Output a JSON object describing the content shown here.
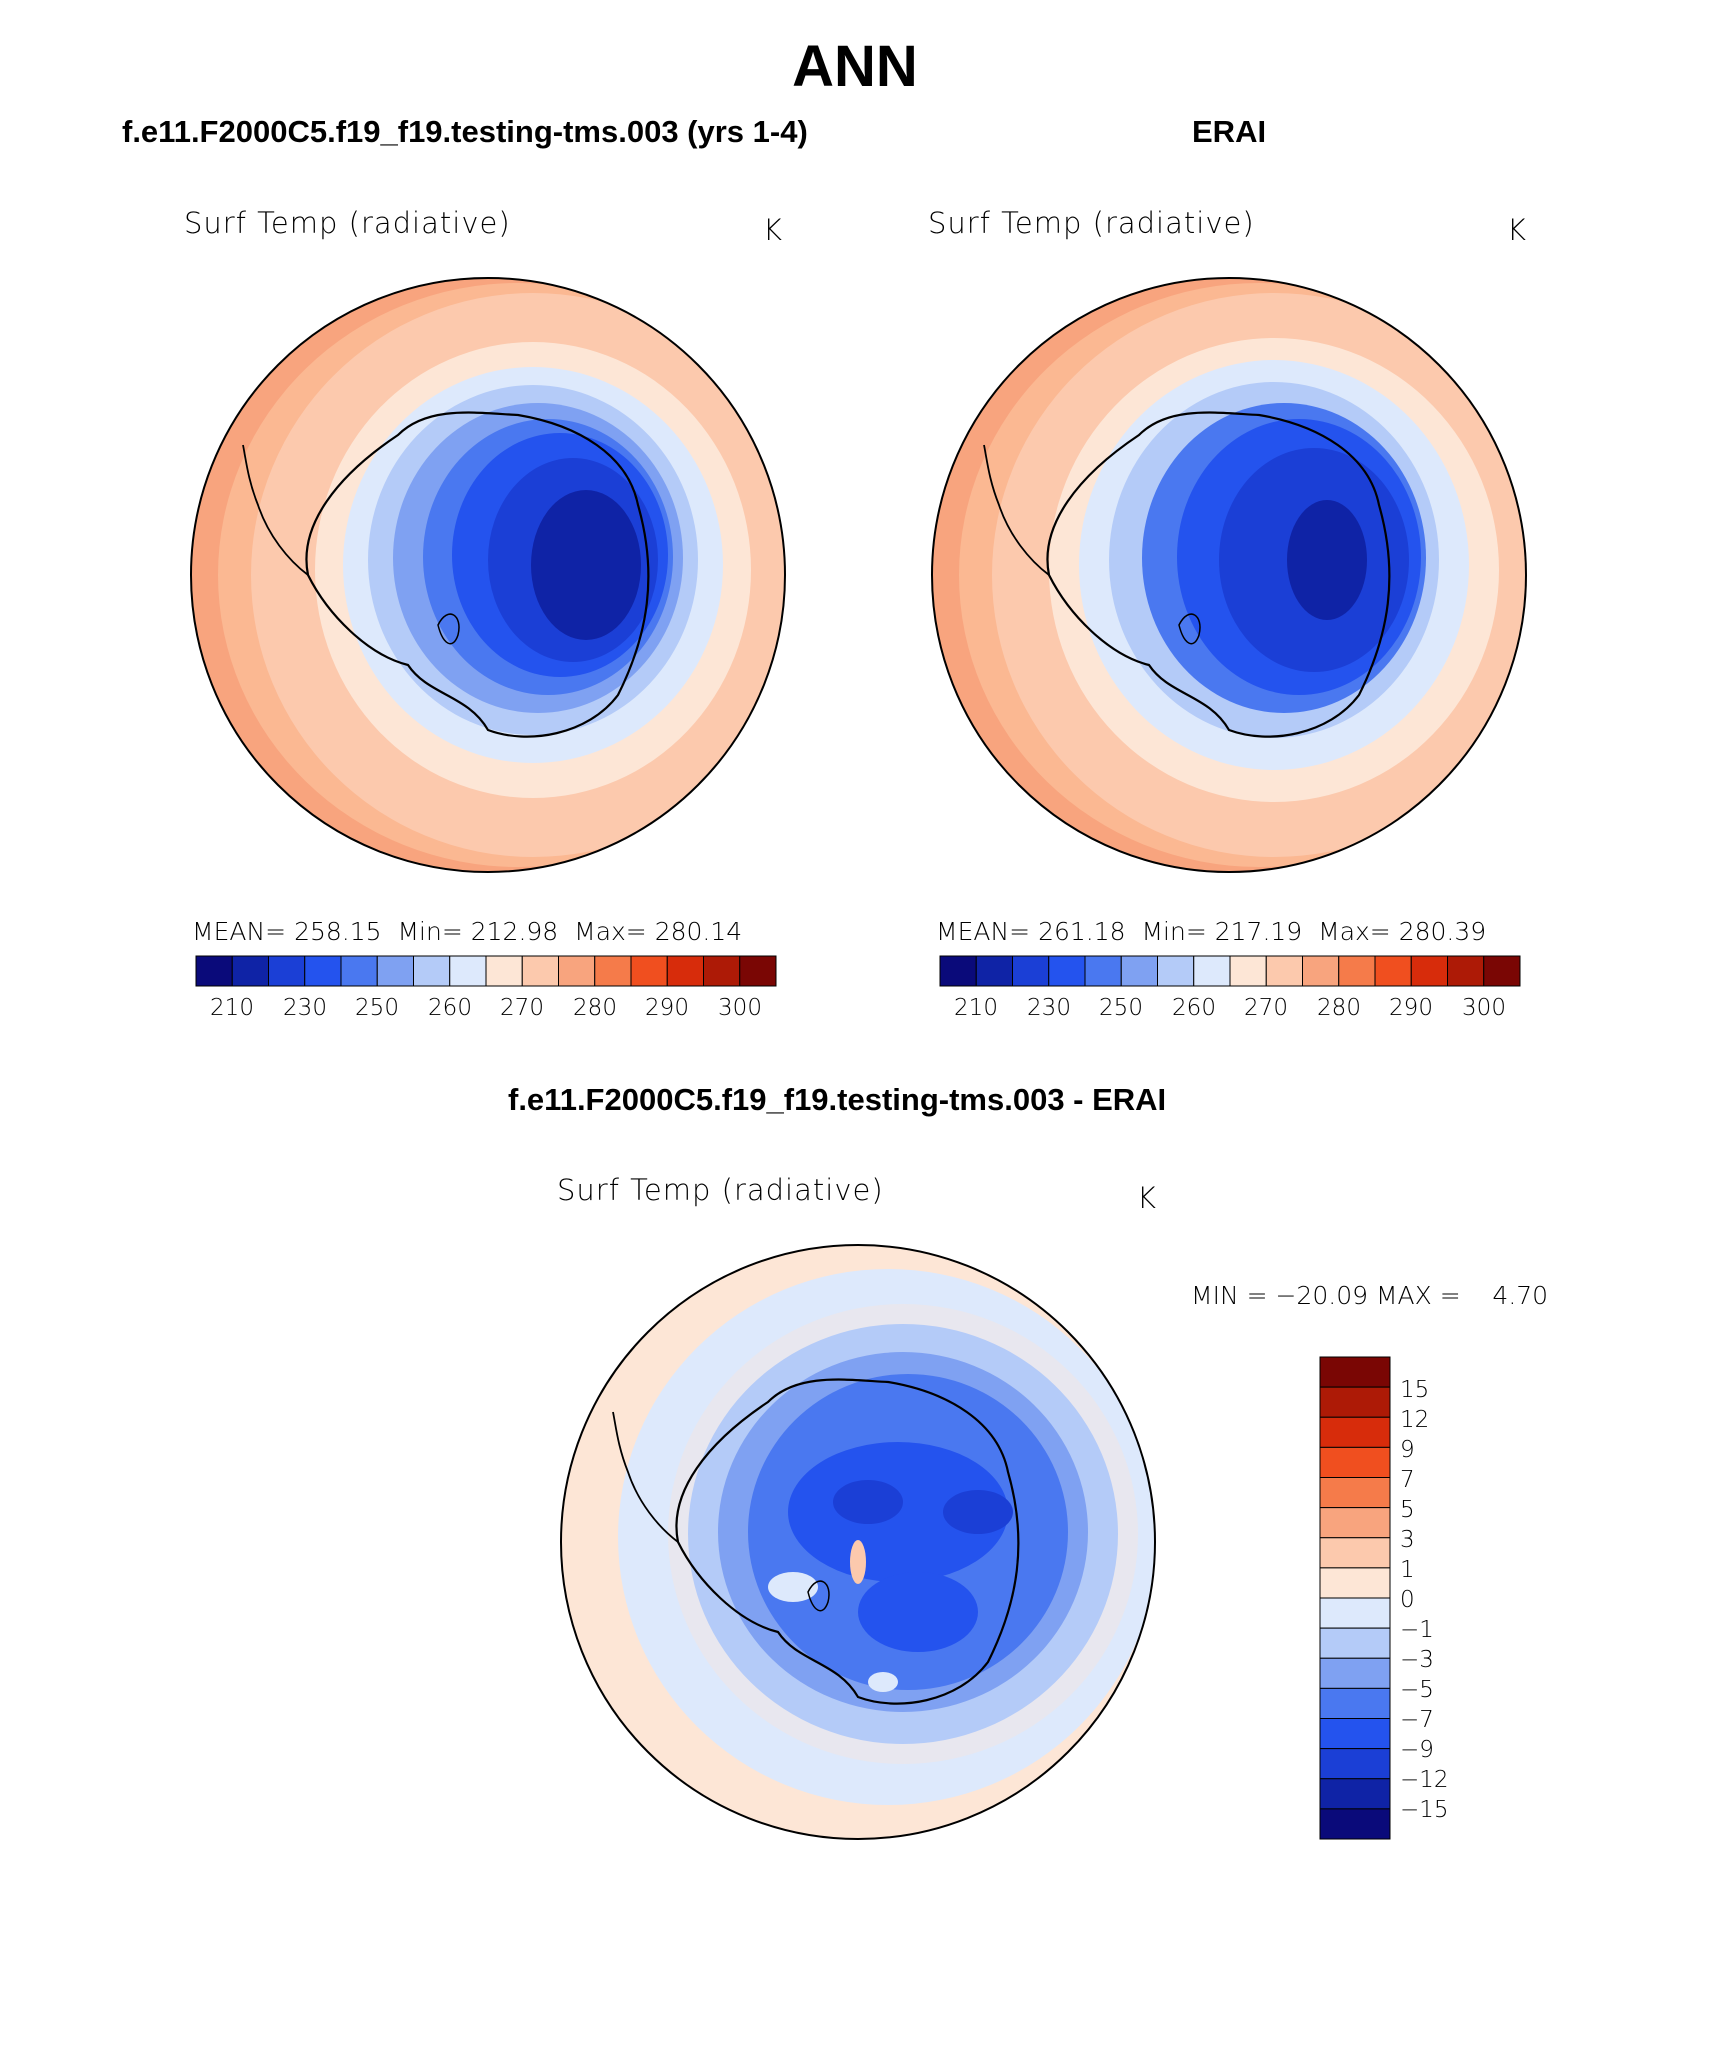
{
  "title": "ANN",
  "panels": [
    {
      "title": "f.e11.F2000C5.f19_f19.testing-tms.003 (yrs 1-4)",
      "variable": "Surf Temp (radiative)",
      "units": "K",
      "stats": {
        "mean_label": "MEAN=",
        "mean": "258.15",
        "min_label": "Min=",
        "min": "212.98",
        "max_label": "Max=",
        "max": "280.14"
      }
    },
    {
      "title": "ERAI",
      "variable": "Surf Temp (radiative)",
      "units": "K",
      "stats": {
        "mean_label": "MEAN=",
        "mean": "261.18",
        "min_label": "Min=",
        "min": "217.19",
        "max_label": "Max=",
        "max": "280.39"
      }
    }
  ],
  "diff_panel": {
    "title": "f.e11.F2000C5.f19_f19.testing-tms.003 - ERAI",
    "variable": "Surf Temp (radiative)",
    "units": "K",
    "minmax_text": "MIN = −20.09 MAX =    4.70"
  },
  "abs_colorbar": {
    "tick_labels": [
      "210",
      "230",
      "250",
      "260",
      "270",
      "280",
      "290",
      "300"
    ],
    "colors": [
      "#0a0a7a",
      "#0f23a6",
      "#1b3fd6",
      "#2453ee",
      "#4a78f0",
      "#7fa1f2",
      "#b4cbf8",
      "#dde9fc",
      "#fde6d6",
      "#fcc9ad",
      "#f8a47e",
      "#f57b4a",
      "#f04f1f",
      "#d72c0b",
      "#ad1a06",
      "#7a0604"
    ]
  },
  "diff_colorbar": {
    "levels": [
      "15",
      "12",
      "9",
      "7",
      "5",
      "3",
      "1",
      "0",
      "−1",
      "−3",
      "−5",
      "−7",
      "−9",
      "−12",
      "−15"
    ],
    "colors_top_to_bottom": [
      "#7a0604",
      "#ad1a06",
      "#d72c0b",
      "#f04f1f",
      "#f57b4a",
      "#f8a47e",
      "#fcc9ad",
      "#fde6d6",
      "#dde9fc",
      "#b4cbf8",
      "#7fa1f2",
      "#4a78f0",
      "#2453ee",
      "#1b3fd6",
      "#0f23a6",
      "#0a0a7a"
    ]
  },
  "chart_data": [
    {
      "type": "heatmap",
      "title": "f.e11.F2000C5.f19_f19.testing-tms.003 (yrs 1-4)",
      "field": "Surf Temp (radiative)",
      "units": "K",
      "projection": "south polar stereographic",
      "mean": 258.15,
      "min": 212.98,
      "max": 280.14,
      "contour_levels": [
        210,
        220,
        230,
        240,
        250,
        255,
        260,
        265,
        270,
        275,
        280,
        285,
        290,
        295,
        300
      ]
    },
    {
      "type": "heatmap",
      "title": "ERAI",
      "field": "Surf Temp (radiative)",
      "units": "K",
      "projection": "south polar stereographic",
      "mean": 261.18,
      "min": 217.19,
      "max": 280.39,
      "contour_levels": [
        210,
        220,
        230,
        240,
        250,
        255,
        260,
        265,
        270,
        275,
        280,
        285,
        290,
        295,
        300
      ]
    },
    {
      "type": "heatmap",
      "title": "f.e11.F2000C5.f19_f19.testing-tms.003 - ERAI",
      "field": "Surf Temp (radiative)",
      "units": "K",
      "projection": "south polar stereographic",
      "min": -20.09,
      "max": 4.7,
      "contour_levels": [
        -15,
        -12,
        -9,
        -7,
        -5,
        -3,
        -1,
        0,
        1,
        3,
        5,
        7,
        9,
        12,
        15
      ]
    }
  ]
}
